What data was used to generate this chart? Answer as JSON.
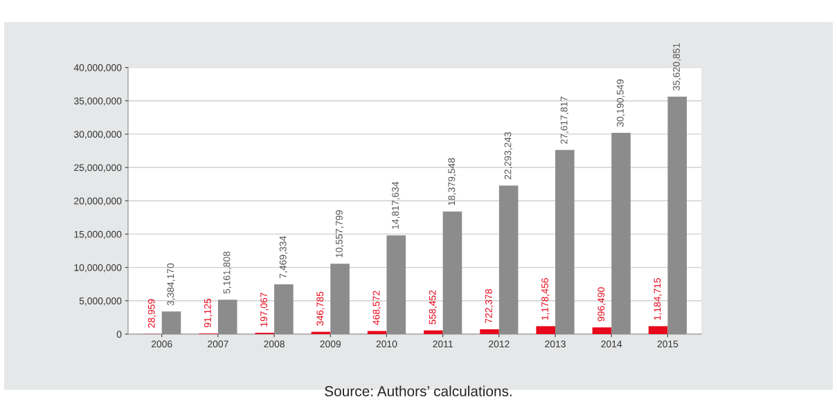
{
  "chart_data": {
    "type": "bar",
    "categories": [
      "2006",
      "2007",
      "2008",
      "2009",
      "2010",
      "2011",
      "2012",
      "2013",
      "2014",
      "2015"
    ],
    "series": [
      {
        "color": "#e8081c",
        "values": [
          28959,
          91125,
          197067,
          346785,
          468572,
          558452,
          722378,
          1178456,
          996490,
          1184715
        ],
        "value_labels": [
          "28,959",
          "91,125",
          "197,067",
          "346,785",
          "468,572",
          "558,452",
          "722,378",
          "1,178,456",
          "996,490",
          "1,184,715"
        ]
      },
      {
        "color": "#8c8c8c",
        "values": [
          3384170,
          5161808,
          7469334,
          10557799,
          14817634,
          18379548,
          22293243,
          27617817,
          30190549,
          35620851
        ],
        "value_labels": [
          "3,384,170",
          "5,161,808",
          "7,469,334",
          "10,557,799",
          "14,817,634",
          "18,379,548",
          "22,293,243",
          "27,617,817",
          "30,190,549",
          "35,620,851"
        ]
      }
    ],
    "ylim": [
      0,
      40000000
    ],
    "yticks": [
      {
        "value": 0,
        "label": "0"
      },
      {
        "value": 5000000,
        "label": "5,000,000"
      },
      {
        "value": 10000000,
        "label": "10,000,000"
      },
      {
        "value": 15000000,
        "label": "15,000,000"
      },
      {
        "value": 20000000,
        "label": "20,000,000"
      },
      {
        "value": 25000000,
        "label": "25,000,000"
      },
      {
        "value": 30000000,
        "label": "30,000,000"
      },
      {
        "value": 35000000,
        "label": "35,000,000"
      },
      {
        "value": 40000000,
        "label": "40,000,000"
      }
    ],
    "grid": "y",
    "annotations": [
      "Source: Authors’ calculations."
    ]
  }
}
